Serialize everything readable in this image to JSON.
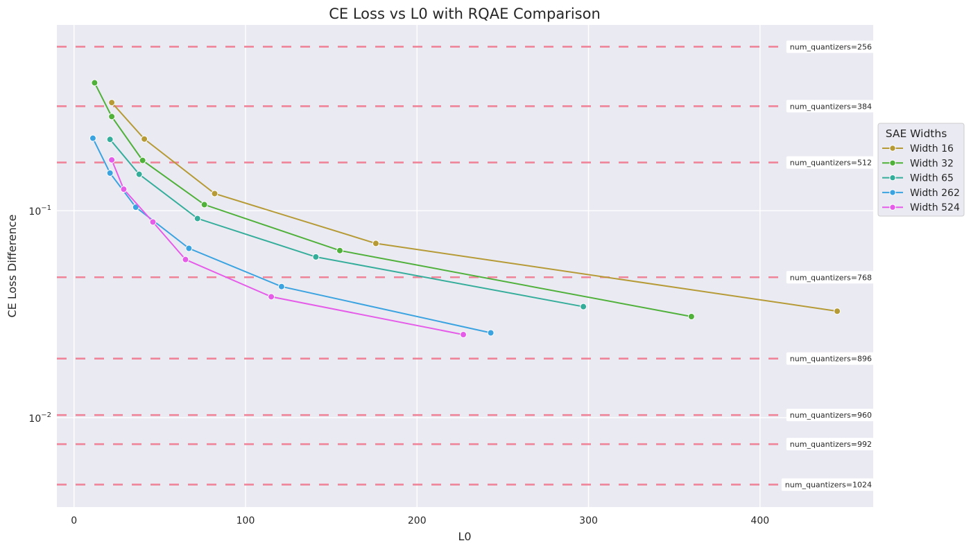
{
  "chart_data": {
    "type": "line",
    "title": "CE Loss vs L0 with RQAE Comparison",
    "xlabel": "L0",
    "ylabel": "CE Loss Difference",
    "xlim": [
      -10,
      466
    ],
    "ylim": [
      0.0037,
      0.79
    ],
    "y_scale": "log",
    "x_ticks": [
      0,
      100,
      200,
      300,
      400
    ],
    "y_ticks": [
      {
        "value": 0.1,
        "base": "10",
        "exp": "−1"
      },
      {
        "value": 0.01,
        "base": "10",
        "exp": "−2"
      }
    ],
    "grid": true,
    "legend": {
      "title": "SAE Widths",
      "placement": "right"
    },
    "series": [
      {
        "name": "Width 16",
        "color": "#b59a35",
        "points": [
          [
            22,
            0.333
          ],
          [
            41,
            0.222
          ],
          [
            82,
            0.121
          ],
          [
            176,
            0.0695
          ],
          [
            445,
            0.0327
          ]
        ]
      },
      {
        "name": "Width 32",
        "color": "#4fb03a",
        "points": [
          [
            12,
            0.415
          ],
          [
            22,
            0.285
          ],
          [
            40,
            0.175
          ],
          [
            76,
            0.107
          ],
          [
            155,
            0.0642
          ],
          [
            360,
            0.0308
          ]
        ]
      },
      {
        "name": "Width 65",
        "color": "#35ad9b",
        "points": [
          [
            21,
            0.221
          ],
          [
            38,
            0.15
          ],
          [
            72,
            0.0917
          ],
          [
            141,
            0.0598
          ],
          [
            297,
            0.0344
          ]
        ]
      },
      {
        "name": "Width 262",
        "color": "#3ba3e0",
        "points": [
          [
            11,
            0.224
          ],
          [
            21,
            0.152
          ],
          [
            36,
            0.104
          ],
          [
            67,
            0.0658
          ],
          [
            121,
            0.043
          ],
          [
            243,
            0.0257
          ]
        ]
      },
      {
        "name": "Width 524",
        "color": "#e55ce9",
        "points": [
          [
            22,
            0.176
          ],
          [
            29,
            0.127
          ],
          [
            46,
            0.0882
          ],
          [
            65,
            0.0581
          ],
          [
            115,
            0.0384
          ],
          [
            227,
            0.0252
          ]
        ]
      }
    ],
    "reference_lines": {
      "color": "#f07f95",
      "lines": [
        {
          "label": "num_quantizers=256",
          "value": 0.62
        },
        {
          "label": "num_quantizers=384",
          "value": 0.32
        },
        {
          "label": "num_quantizers=512",
          "value": 0.171
        },
        {
          "label": "num_quantizers=768",
          "value": 0.0477
        },
        {
          "label": "num_quantizers=896",
          "value": 0.0193
        },
        {
          "label": "num_quantizers=960",
          "value": 0.0103
        },
        {
          "label": "num_quantizers=992",
          "value": 0.00745
        },
        {
          "label": "num_quantizers=1024",
          "value": 0.00475
        }
      ]
    }
  }
}
